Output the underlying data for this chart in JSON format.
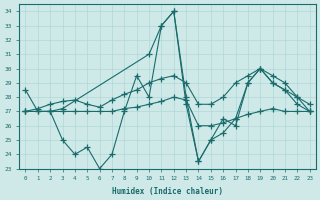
{
  "xlabel": "Humidex (Indice chaleur)",
  "xlim": [
    -0.5,
    23.5
  ],
  "ylim": [
    23,
    34.5
  ],
  "yticks": [
    23,
    24,
    25,
    26,
    27,
    28,
    29,
    30,
    31,
    32,
    33,
    34
  ],
  "xticks": [
    0,
    1,
    2,
    3,
    4,
    5,
    6,
    7,
    8,
    9,
    10,
    11,
    12,
    13,
    14,
    15,
    16,
    17,
    18,
    19,
    20,
    21,
    22,
    23
  ],
  "background_color": "#cfe9e9",
  "line_color": "#1a6b6b",
  "grid_color": "#b0d8d8",
  "series": [
    {
      "x": [
        0,
        1,
        2,
        3,
        4,
        5,
        6,
        7,
        8,
        9,
        10,
        11,
        12,
        13,
        14,
        15,
        16,
        17,
        18,
        19,
        20,
        21,
        22,
        23
      ],
      "y": [
        28.5,
        27.0,
        27.0,
        25.0,
        24.0,
        24.5,
        23.0,
        24.0,
        27.0,
        29.5,
        28.0,
        33.0,
        34.0,
        27.5,
        23.5,
        25.0,
        26.5,
        26.0,
        29.0,
        30.0,
        29.0,
        28.5,
        27.5,
        27.0
      ]
    },
    {
      "x": [
        0,
        1,
        2,
        3,
        4,
        5,
        6,
        7,
        8,
        9,
        10,
        11,
        12,
        13,
        14,
        15,
        16,
        17,
        18,
        19,
        20,
        21,
        22,
        23
      ],
      "y": [
        27.0,
        27.0,
        27.0,
        27.0,
        27.0,
        27.0,
        27.0,
        27.0,
        27.2,
        27.3,
        27.5,
        27.7,
        28.0,
        27.8,
        26.0,
        26.0,
        26.2,
        26.5,
        26.8,
        27.0,
        27.2,
        27.0,
        27.0,
        27.0
      ]
    },
    {
      "x": [
        0,
        1,
        2,
        3,
        4,
        5,
        6,
        7,
        8,
        9,
        10,
        11,
        12,
        13,
        14,
        15,
        16,
        17,
        18,
        19,
        20,
        21,
        22,
        23
      ],
      "y": [
        27.0,
        27.2,
        27.5,
        27.7,
        27.8,
        27.5,
        27.3,
        27.8,
        28.2,
        28.5,
        29.0,
        29.3,
        29.5,
        29.0,
        27.5,
        27.5,
        28.0,
        29.0,
        29.5,
        30.0,
        29.0,
        28.5,
        28.0,
        27.5
      ]
    },
    {
      "x": [
        0,
        2,
        3,
        10,
        11,
        12,
        13,
        14,
        15,
        16,
        17,
        18,
        19,
        20,
        21,
        22,
        23
      ],
      "y": [
        27.0,
        27.0,
        27.2,
        31.0,
        33.0,
        34.0,
        28.0,
        23.5,
        25.0,
        25.5,
        26.5,
        29.0,
        30.0,
        29.5,
        29.0,
        28.0,
        27.0
      ]
    }
  ]
}
